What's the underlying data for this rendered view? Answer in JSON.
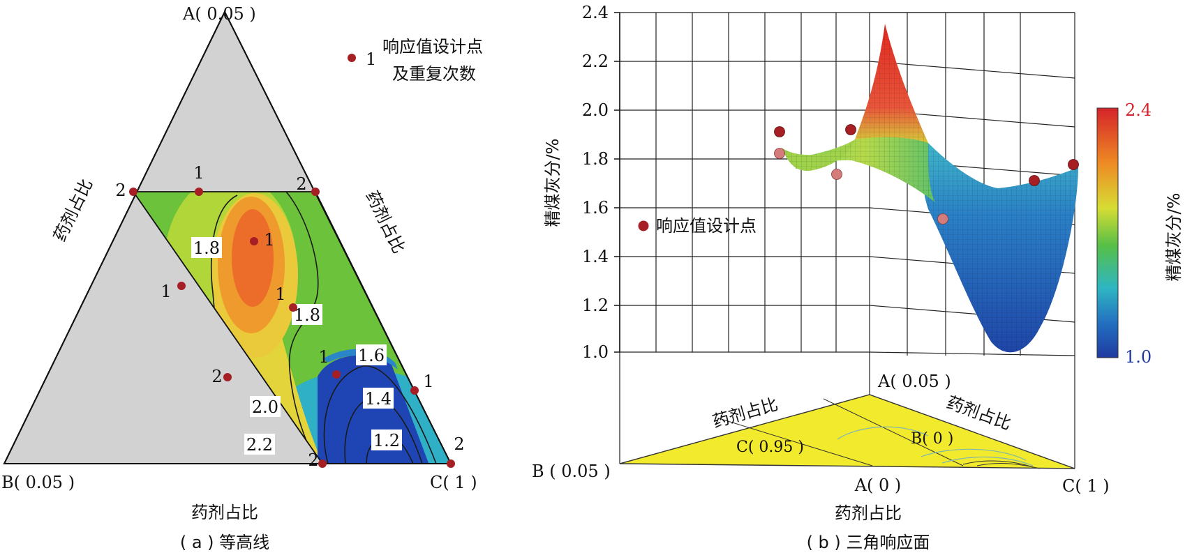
{
  "chart_data": [
    {
      "panel": "a",
      "type": "heatmap",
      "caption": "( a ) 等高线",
      "axis_title": "药剂占比",
      "left_edge_label": "药剂占比",
      "right_edge_label": "药剂占比",
      "vertex_labels": {
        "top": "A( 0.05 )",
        "left": "B( 0.05 )",
        "right": "C( 1 )"
      },
      "legend": {
        "marker_label": "1",
        "text_line1": "响应值设计点",
        "text_line2": "及重复次数"
      },
      "contour_labels": [
        "1.8",
        "1.8",
        "1.6",
        "1.4",
        "1.2",
        "2.0",
        "2.2"
      ],
      "design_point_counts": [
        "2",
        "1",
        "2",
        "1",
        "1",
        "1",
        "2",
        "1",
        "1",
        "2",
        "2"
      ],
      "colors": {
        "red": "#e8261e",
        "orange": "#f2a224",
        "yellow": "#e9e23b",
        "green": "#6cc23a",
        "blue": "#1f45b5",
        "gray": "#d2d2d2",
        "point": "#a51f24"
      }
    },
    {
      "panel": "b",
      "type": "surface3d",
      "caption": "( b ) 三角响应面",
      "zlabel": "精煤灰分/%",
      "zlim": [
        1.0,
        2.4
      ],
      "z_ticks": [
        "2.4",
        "2.2",
        "2.0",
        "1.8",
        "1.6",
        "1.4",
        "1.2",
        "1.0"
      ],
      "legend_label": "响应值设计点",
      "base_vertex_labels": {
        "top": "A( 0.05 )",
        "left": "B ( 0.05 )",
        "right": "C( 1 )"
      },
      "base_inner_labels": {
        "c": "C( 0.95 )",
        "b": "B( 0 )"
      },
      "base_axis_title": "药剂占比",
      "base_edge_labels": [
        "药剂占比",
        "药剂占比"
      ],
      "bottom_tick_a0": "A( 0 )",
      "colorbar": {
        "title": "精煤灰分/%",
        "max_label": "2.4",
        "min_label": "1.0",
        "max": 2.4,
        "min": 1.0
      },
      "colors": {
        "base": "#f2ea2c",
        "point_dark": "#a51f24",
        "point_light": "#d47b7b"
      }
    }
  ]
}
